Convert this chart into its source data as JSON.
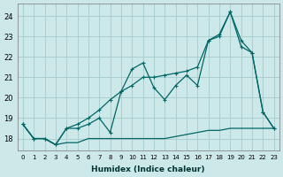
{
  "xlabel": "Humidex (Indice chaleur)",
  "bg_color": "#cce8e8",
  "grid_color": "#aacfcf",
  "line_color": "#006666",
  "xlim": [
    -0.5,
    23.5
  ],
  "ylim": [
    17.4,
    24.6
  ],
  "yticks": [
    18,
    19,
    20,
    21,
    22,
    23,
    24
  ],
  "xticks": [
    0,
    1,
    2,
    3,
    4,
    5,
    6,
    7,
    8,
    9,
    10,
    11,
    12,
    13,
    14,
    15,
    16,
    17,
    18,
    19,
    20,
    21,
    22,
    23
  ],
  "series": [
    {
      "x": [
        0,
        1,
        2,
        3,
        4,
        5,
        6,
        7,
        8,
        9,
        10,
        11,
        12,
        13,
        14,
        15,
        16,
        17,
        18,
        19,
        20,
        21,
        22,
        23
      ],
      "y": [
        18.7,
        18.0,
        18.0,
        17.7,
        17.8,
        17.8,
        18.0,
        18.0,
        18.0,
        18.0,
        18.0,
        18.0,
        18.0,
        18.0,
        18.1,
        18.2,
        18.3,
        18.4,
        18.4,
        18.5,
        18.5,
        18.5,
        18.5,
        18.5
      ],
      "linestyle": "-",
      "marker": false
    },
    {
      "x": [
        0,
        1,
        2,
        3,
        4,
        5,
        6,
        7,
        8,
        9,
        10,
        11,
        12,
        13,
        14,
        15,
        16,
        17,
        18,
        19,
        20,
        21,
        22,
        23
      ],
      "y": [
        18.7,
        18.0,
        18.0,
        17.7,
        18.5,
        18.5,
        18.7,
        19.0,
        18.3,
        20.3,
        21.4,
        21.7,
        20.5,
        19.9,
        20.6,
        21.1,
        20.6,
        22.8,
        23.1,
        24.2,
        22.8,
        22.2,
        19.3,
        18.5
      ],
      "linestyle": "-",
      "marker": true
    },
    {
      "x": [
        0,
        1,
        2,
        3,
        4,
        5,
        6,
        7,
        8,
        9,
        10,
        11,
        12,
        13,
        14,
        15,
        16,
        17,
        18,
        19,
        20,
        21,
        22,
        23
      ],
      "y": [
        18.7,
        18.0,
        18.0,
        17.7,
        18.5,
        18.7,
        19.0,
        19.4,
        19.9,
        20.3,
        20.6,
        21.0,
        21.0,
        21.1,
        21.2,
        21.3,
        21.5,
        22.8,
        23.0,
        24.2,
        22.5,
        22.2,
        19.3,
        18.5
      ],
      "linestyle": "-",
      "marker": true
    }
  ]
}
